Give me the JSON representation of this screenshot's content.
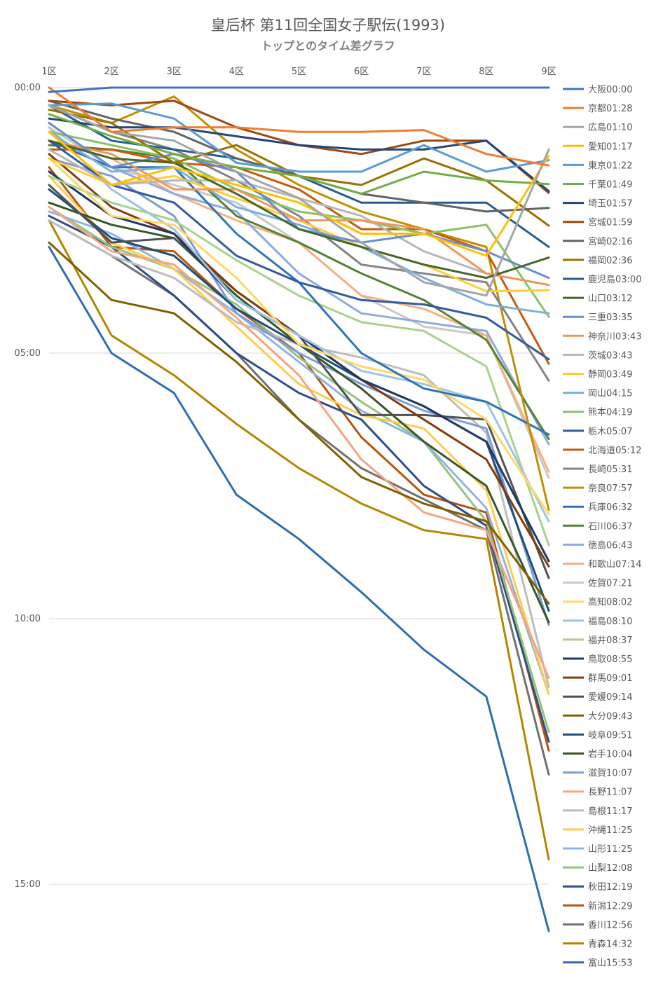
{
  "chart_data": {
    "type": "line",
    "title": "皇后杯 第11回全国女子駅伝(1993)",
    "subtitle": "トップとのタイム差グラフ",
    "x": [
      "1区",
      "2区",
      "3区",
      "4区",
      "5区",
      "6区",
      "7区",
      "8区",
      "9区"
    ],
    "y_ticks": [
      "00:00",
      "05:00",
      "10:00",
      "15:00"
    ],
    "ylim_seconds": [
      0,
      960
    ],
    "y_inverted": true,
    "grid": "horizontal",
    "legend_position": "right",
    "series": [
      {
        "name": "大阪00:00",
        "color": "#4472C4",
        "values": [
          5,
          0,
          0,
          0,
          0,
          0,
          0,
          0,
          0
        ]
      },
      {
        "name": "京都01:28",
        "color": "#ED7D31",
        "values": [
          0,
          50,
          45,
          45,
          50,
          50,
          48,
          75,
          88
        ]
      },
      {
        "name": "広島01:10",
        "color": "#A5A5A5",
        "values": [
          20,
          50,
          60,
          95,
          125,
          175,
          220,
          235,
          70
        ]
      },
      {
        "name": "愛知01:17",
        "color": "#FFC000",
        "values": [
          50,
          110,
          90,
          110,
          130,
          165,
          165,
          190,
          77
        ]
      },
      {
        "name": "東京01:22",
        "color": "#5B9BD5",
        "values": [
          20,
          18,
          35,
          85,
          95,
          95,
          65,
          95,
          82
        ]
      },
      {
        "name": "千葉01:49",
        "color": "#70AD47",
        "values": [
          30,
          55,
          75,
          90,
          100,
          120,
          95,
          105,
          109
        ]
      },
      {
        "name": "埼玉01:57",
        "color": "#264478",
        "values": [
          35,
          45,
          45,
          55,
          65,
          70,
          70,
          60,
          117
        ]
      },
      {
        "name": "宮城01:59",
        "color": "#9E480E",
        "values": [
          15,
          20,
          15,
          45,
          65,
          75,
          60,
          60,
          119
        ]
      },
      {
        "name": "宮崎02:16",
        "color": "#636363",
        "values": [
          15,
          35,
          50,
          80,
          100,
          120,
          130,
          140,
          136
        ]
      },
      {
        "name": "福岡02:36",
        "color": "#997300",
        "values": [
          25,
          40,
          85,
          65,
          100,
          110,
          80,
          105,
          156
        ]
      },
      {
        "name": "鹿児島03:00",
        "color": "#255E91",
        "values": [
          20,
          60,
          70,
          80,
          100,
          130,
          130,
          130,
          180
        ]
      },
      {
        "name": "山口03:12",
        "color": "#43682B",
        "values": [
          60,
          80,
          85,
          120,
          160,
          180,
          200,
          215,
          192
        ]
      },
      {
        "name": "三重03:35",
        "color": "#698ED0",
        "values": [
          40,
          90,
          75,
          95,
          160,
          175,
          165,
          185,
          215
        ]
      },
      {
        "name": "神奈川03:43",
        "color": "#F1975A",
        "values": [
          60,
          75,
          115,
          115,
          150,
          150,
          160,
          210,
          223
        ]
      },
      {
        "name": "茨城03:43",
        "color": "#B7B7B7",
        "values": [
          70,
          110,
          105,
          105,
          125,
          145,
          185,
          210,
          223
        ]
      },
      {
        "name": "静岡03:49",
        "color": "#FFCD33",
        "values": [
          80,
          110,
          100,
          125,
          150,
          180,
          200,
          230,
          229
        ]
      },
      {
        "name": "岡山04:15",
        "color": "#7CAFDD",
        "values": [
          50,
          95,
          90,
          135,
          155,
          180,
          215,
          245,
          255
        ]
      },
      {
        "name": "熊本04:19",
        "color": "#8CC168",
        "values": [
          50,
          65,
          80,
          115,
          140,
          150,
          165,
          155,
          259
        ]
      },
      {
        "name": "栃木05:07",
        "color": "#335AA1",
        "values": [
          60,
          110,
          130,
          190,
          220,
          240,
          245,
          260,
          307
        ]
      },
      {
        "name": "北海道05:12",
        "color": "#C55A11",
        "values": [
          70,
          70,
          85,
          90,
          115,
          160,
          160,
          185,
          312
        ]
      },
      {
        "name": "長崎05:31",
        "color": "#848484",
        "values": [
          20,
          50,
          70,
          105,
          145,
          200,
          210,
          220,
          331
        ]
      },
      {
        "name": "奈良07:57",
        "color": "#BF9000",
        "values": [
          20,
          40,
          10,
          70,
          110,
          140,
          160,
          180,
          477
        ]
      },
      {
        "name": "兵庫06:32",
        "color": "#2E75B6",
        "values": [
          60,
          90,
          90,
          165,
          220,
          300,
          340,
          355,
          392
        ]
      },
      {
        "name": "石川06:37",
        "color": "#548235",
        "values": [
          65,
          70,
          80,
          145,
          175,
          210,
          240,
          285,
          397
        ]
      },
      {
        "name": "徳島06:43",
        "color": "#8FAADC",
        "values": [
          40,
          90,
          120,
          140,
          210,
          255,
          265,
          275,
          403
        ]
      },
      {
        "name": "和歌山07:14",
        "color": "#F4B183",
        "values": [
          60,
          80,
          120,
          150,
          175,
          235,
          250,
          280,
          434
        ]
      },
      {
        "name": "佐賀07:21",
        "color": "#C9C9C9",
        "values": [
          45,
          90,
          110,
          130,
          175,
          235,
          270,
          280,
          441
        ]
      },
      {
        "name": "高知08:02",
        "color": "#FFD966",
        "values": [
          80,
          145,
          155,
          215,
          290,
          315,
          330,
          375,
          482
        ]
      },
      {
        "name": "福島08:10",
        "color": "#9DC3E6",
        "values": [
          45,
          115,
          160,
          240,
          280,
          320,
          335,
          355,
          490
        ]
      },
      {
        "name": "福井08:37",
        "color": "#A9D18E",
        "values": [
          100,
          130,
          150,
          195,
          235,
          265,
          275,
          315,
          517
        ]
      },
      {
        "name": "鳥取08:55",
        "color": "#203864",
        "values": [
          95,
          145,
          165,
          240,
          280,
          330,
          360,
          400,
          535
        ]
      },
      {
        "name": "群馬09:01",
        "color": "#843C0C",
        "values": [
          75,
          135,
          165,
          230,
          280,
          330,
          375,
          420,
          541
        ]
      },
      {
        "name": "愛媛09:14",
        "color": "#525252",
        "values": [
          110,
          175,
          170,
          230,
          280,
          370,
          370,
          375,
          554
        ]
      },
      {
        "name": "大分09:43",
        "color": "#7F6000",
        "values": [
          175,
          240,
          255,
          310,
          375,
          440,
          470,
          490,
          583
        ]
      },
      {
        "name": "岐阜09:51",
        "color": "#1F4E79",
        "values": [
          115,
          170,
          190,
          250,
          290,
          330,
          360,
          400,
          591
        ]
      },
      {
        "name": "岩手10:04",
        "color": "#385723",
        "values": [
          130,
          155,
          170,
          235,
          290,
          340,
          400,
          450,
          604
        ]
      },
      {
        "name": "滋賀10:07",
        "color": "#7C9DD6",
        "values": [
          80,
          100,
          145,
          255,
          300,
          335,
          365,
          385,
          607
        ]
      },
      {
        "name": "長野11:07",
        "color": "#F4A582",
        "values": [
          135,
          185,
          200,
          260,
          325,
          420,
          480,
          500,
          667
        ]
      },
      {
        "name": "島根11:17",
        "color": "#BDBDBD",
        "values": [
          150,
          190,
          215,
          265,
          290,
          305,
          325,
          390,
          677
        ]
      },
      {
        "name": "沖縄11:25",
        "color": "#FFCD4D",
        "values": [
          100,
          175,
          205,
          270,
          335,
          370,
          385,
          455,
          685
        ]
      },
      {
        "name": "山形11:25",
        "color": "#8DB4E2",
        "values": [
          140,
          165,
          205,
          255,
          310,
          365,
          400,
          475,
          685
        ]
      },
      {
        "name": "山梨12:08",
        "color": "#93C47D",
        "values": [
          135,
          180,
          205,
          245,
          305,
          355,
          400,
          490,
          728
        ]
      },
      {
        "name": "秋田12:19",
        "color": "#2F4D8A",
        "values": [
          145,
          180,
          235,
          300,
          345,
          375,
          450,
          495,
          739
        ]
      },
      {
        "name": "新潟12:29",
        "color": "#B85410",
        "values": [
          90,
          180,
          185,
          250,
          300,
          395,
          460,
          480,
          749
        ]
      },
      {
        "name": "香川12:56",
        "color": "#707070",
        "values": [
          150,
          190,
          235,
          300,
          375,
          430,
          465,
          500,
          776
        ]
      },
      {
        "name": "青森14:32",
        "color": "#B38600",
        "values": [
          150,
          280,
          325,
          380,
          430,
          470,
          500,
          510,
          872
        ]
      },
      {
        "name": "富山15:53",
        "color": "#2E6EAE",
        "values": [
          180,
          300,
          345,
          460,
          510,
          570,
          635,
          688,
          953
        ]
      }
    ]
  }
}
